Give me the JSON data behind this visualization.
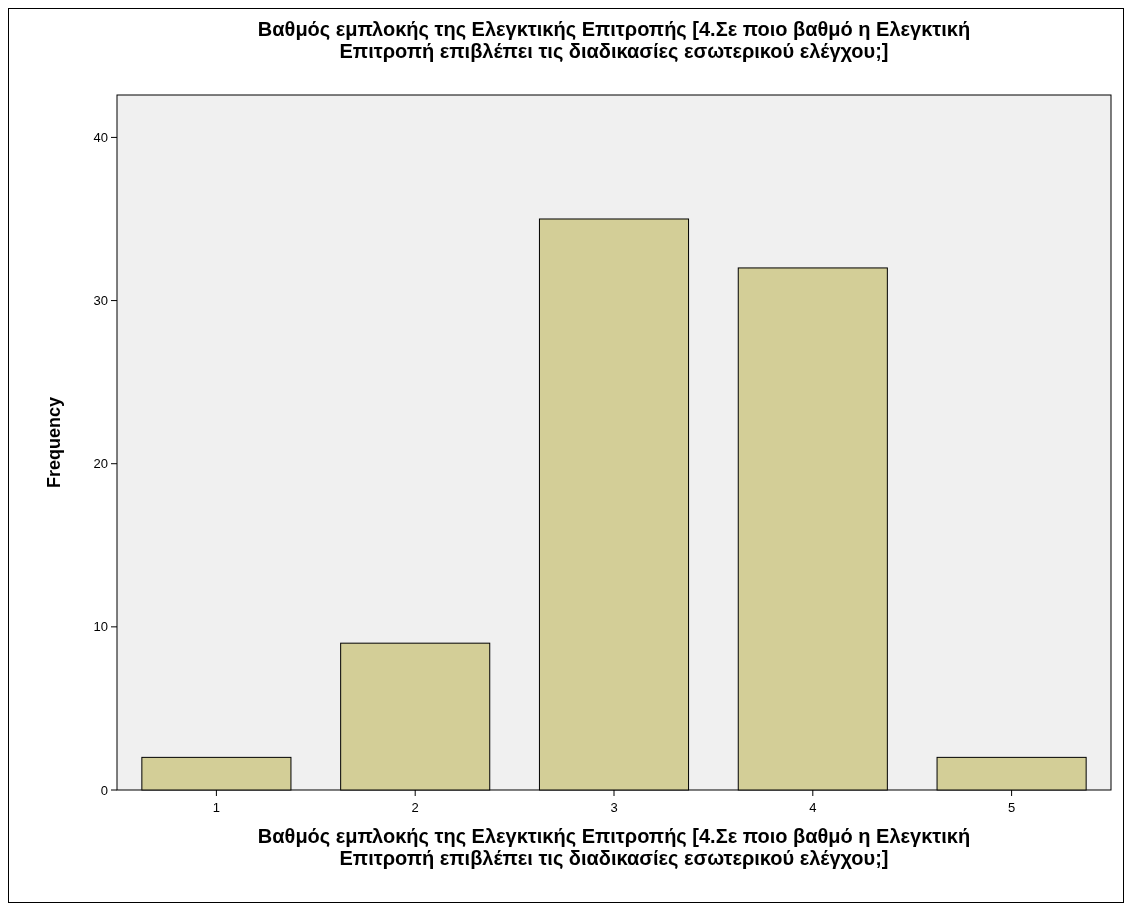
{
  "chart_data": {
    "type": "bar",
    "title": "Βαθμός εμπλοκής της Ελεγκτικής Επιτροπής [4.Σε ποιο βαθμό η Ελεγκτική Επιτροπή επιβλέπει τις διαδικασίες εσωτερικού ελέγχου;]",
    "xlabel": "Βαθμός εμπλοκής της Ελεγκτικής Επιτροπής [4.Σε ποιο βαθμό η Ελεγκτική Επιτροπή επιβλέπει τις διαδικασίες εσωτερικού ελέγχου;]",
    "ylabel": "Frequency",
    "categories": [
      "1",
      "2",
      "3",
      "4",
      "5"
    ],
    "values": [
      2,
      9,
      35,
      32,
      2
    ],
    "color": "#d3ce97",
    "ylim": [
      0,
      42.6
    ],
    "yticks": [
      0,
      10,
      20,
      30,
      40
    ]
  }
}
